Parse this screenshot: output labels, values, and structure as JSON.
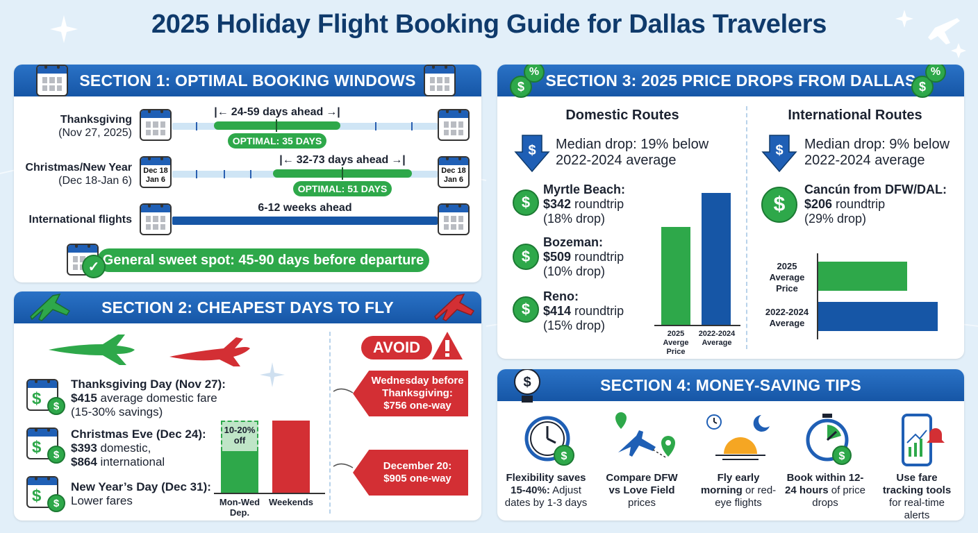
{
  "title": "2025 Holiday Flight Booking Guide for Dallas Travelers",
  "colors": {
    "band": "#1a5eb0",
    "green": "#2ea84a",
    "red": "#d32f34",
    "navy": "#0f3a6b"
  },
  "section1": {
    "header": "SECTION 1: OPTIMAL BOOKING WINDOWS",
    "rows": [
      {
        "name": "Thanksgiving",
        "date": "(Nov 27, 2025)",
        "range": "24-59 days ahead",
        "optimal": "OPTIMAL: 35 DAYS"
      },
      {
        "name": "Christmas/New Year",
        "date": "(Dec 18-Jan 6)",
        "range": "32-73 days ahead",
        "optimal": "OPTIMAL: 51 DAYS",
        "cal_label_1": "Dec 18",
        "cal_label_2": "Jan 6"
      },
      {
        "name": "International flights",
        "range": "6-12 weeks ahead"
      }
    ],
    "sweet_spot": "General sweet spot: 45-90 days before departure"
  },
  "section2": {
    "header": "SECTION 2: CHEAPEST DAYS TO FLY",
    "items": [
      {
        "title": "Thanksgiving Day (Nov 27):",
        "amount": "$415",
        "rest": " average domestic fare",
        "note": "(15-30% savings)"
      },
      {
        "title": "Christmas Eve (Dec 24):",
        "amount": "$393",
        "rest": " domestic,",
        "amount2": "$864",
        "rest2": " international"
      },
      {
        "title": "New Year’s Day (Dec 31):",
        "note": "Lower fares"
      }
    ],
    "chart": {
      "off_label": "10-20% off",
      "cat1": "Mon-Wed Dep.",
      "cat2": "Weekends"
    },
    "avoid": "AVOID",
    "tags": [
      {
        "line1": "Wednesday before",
        "line2": "Thanksgiving:",
        "line3": "$756 one-way"
      },
      {
        "line1": "December 20:",
        "line2": "$905 one-way"
      }
    ]
  },
  "section3": {
    "header": "SECTION 3: 2025 PRICE DROPS FROM DALLAS",
    "domestic": {
      "title": "Domestic Routes",
      "median": "Median drop: 19% below 2022-2024 average",
      "routes": [
        {
          "city": "Myrtle Beach:",
          "price": "$342",
          "rest": " roundtrip",
          "drop": "(18% drop)"
        },
        {
          "city": "Bozeman:",
          "price": "$509",
          "rest": " roundtrip",
          "drop": "(10% drop)"
        },
        {
          "city": "Reno:",
          "price": "$414",
          "rest": " roundtrip",
          "drop": "(15% drop)"
        }
      ],
      "bar1": "2025 Averge Price",
      "bar2": "2022-2024 Average"
    },
    "international": {
      "title": "International Routes",
      "median": "Median drop: 9% below 2022-2024 average",
      "route_city": "Cancún from DFW/DAL:",
      "route_price": "$206",
      "route_rest": " roundtrip",
      "route_drop": "(29% drop)",
      "bar1": "2025 Average Price",
      "bar2": "2022-2024 Average"
    }
  },
  "section4": {
    "header": "SECTION 4: MONEY-SAVING TIPS",
    "tips": [
      {
        "bold": "Flexibility saves 15-40%:",
        "rest": " Adjust dates by 1-3 days"
      },
      {
        "bold": "Compare DFW vs Love Field",
        "rest": " prices"
      },
      {
        "bold": "Fly early morning",
        "rest": " or red-eye flights"
      },
      {
        "bold": "Book within 12-24 hours",
        "rest": " of price drops"
      },
      {
        "bold": "Use fare tracking tools",
        "rest": " for real-time alerts"
      }
    ]
  }
}
